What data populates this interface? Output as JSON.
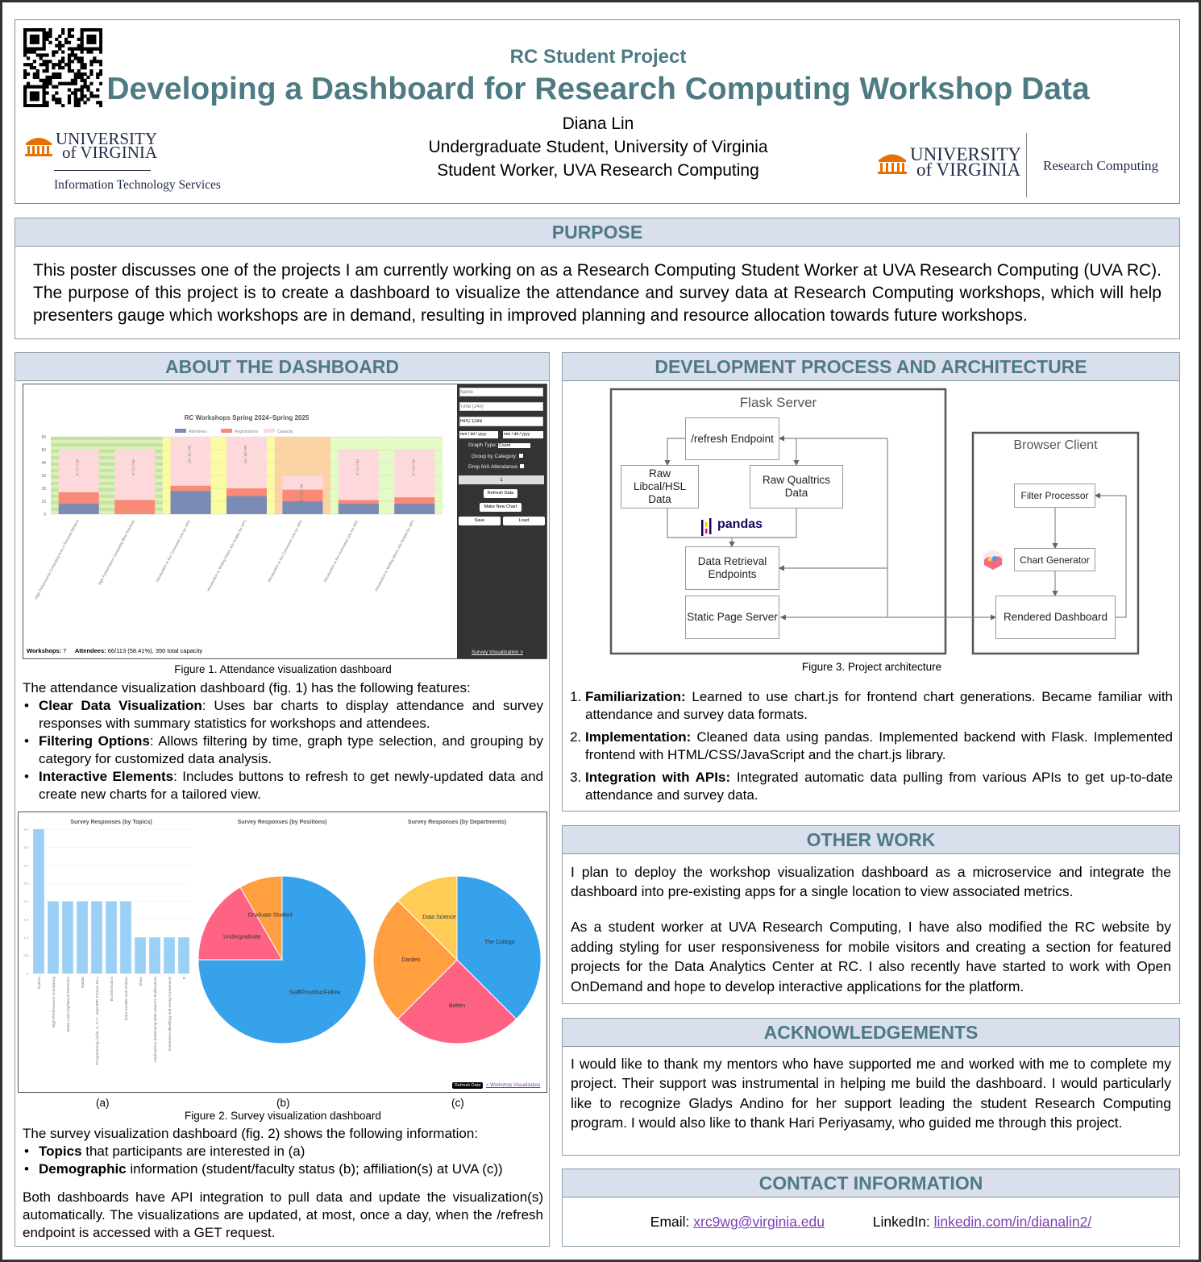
{
  "header": {
    "kicker": "RC Student Project",
    "title": "Developing a Dashboard for Research Computing Workshop Data",
    "author": "Diana Lin",
    "affiliation_1": "Undergraduate Student, University of Virginia",
    "affiliation_2": "Student Worker, UVA Research Computing",
    "logo_left": {
      "line1": "UNIVERSITY",
      "line2": "of VIRGINIA",
      "sub": "Information Technology Services"
    },
    "logo_right": {
      "line1": "UNIVERSITY",
      "line2": "of VIRGINIA",
      "sub": "Research Computing"
    },
    "qr_icon": "qr-code"
  },
  "colors": {
    "heading": "#4e7b83",
    "section_bg": "#d9dfec",
    "uva_orange": "#e57200",
    "uva_navy": "#232d4b",
    "link": "#7b3fb5"
  },
  "purpose": {
    "heading": "PURPOSE",
    "text": "This poster discusses one of the projects I am currently working on as a Research Computing Student Worker at UVA Research Computing (UVA RC). The purpose of this project is to create a dashboard to visualize the attendance and survey data at Research Computing workshops, which will help presenters gauge which workshops are in demand, resulting in improved planning and resource allocation towards future workshops."
  },
  "about": {
    "heading": "ABOUT THE DASHBOARD",
    "fig1_caption": "Figure 1. Attendance visualization dashboard",
    "intro": "The attendance visualization dashboard (fig. 1) has the following features:",
    "features": [
      {
        "bold": "Clear Data Visualization",
        "text": ": Uses bar charts to display attendance and survey responses with summary statistics for workshops and attendees."
      },
      {
        "bold": "Filtering Options",
        "text": ": Allows filtering by time, graph type selection, and grouping by category for customized data analysis."
      },
      {
        "bold": "Interactive Elements",
        "text": ": Includes buttons to refresh to get newly-updated data and create new charts for a tailored view."
      }
    ],
    "fig2_labels": [
      "(a)",
      "(b)",
      "(c)"
    ],
    "fig2_caption": "Figure 2. Survey visualization dashboard",
    "survey_intro": "The survey visualization dashboard (fig. 2) shows the following information:",
    "survey_items": [
      {
        "bold": "Topics",
        "text": " that participants are interested in (a)"
      },
      {
        "bold": "Demographic",
        "text": " information (student/faculty status (b); affiliation(s) at UVA (c))"
      }
    ],
    "closing": "Both dashboards have API integration to pull data and update the visualization(s) automatically. The visualizations are updated, at most, once a day, when the /refresh endpoint is accessed with a GET request."
  },
  "fig1_sidebar": {
    "name_placeholder": "Name",
    "time_placeholder": "Time (24h)",
    "category_value": "HPC Core",
    "date_from": "mm / dd / yyyy",
    "date_to": "mm / dd / yyyy",
    "graph_type_label": "Graph Type:",
    "graph_type_value": "Count",
    "group_label": "Group by Category:",
    "drop_na_label": "Drop N/A Attendance:",
    "page_value": "1",
    "refresh_button": "Refresh Data",
    "new_chart_button": "Make New Chart",
    "save_button": "Save",
    "load_button": "Load",
    "survey_link": "Survey Visualization >"
  },
  "fig1_footer": {
    "workshops_label": "Workshops:",
    "workshops_value": "7",
    "attendees_label": "Attendees:",
    "attendees_value": "66/113 (58.41%), 350 total capacity"
  },
  "fig2_footer": {
    "refresh_button": "Refresh Data",
    "workshop_link": "< Workshop Visualization"
  },
  "chart_data": [
    {
      "type": "bar",
      "title": "RC Workshops Spring 2024–Spring 2025",
      "legend": [
        "Attendees",
        "Registrations",
        "Capacity"
      ],
      "legend_placement": "top",
      "series_colors": [
        "#7a8bb5",
        "#fa8a78",
        "#fdd9dc"
      ],
      "categories": [
        "High Performance Computing from a Terminal Window",
        "High Performance Computing Best Practices",
        "Introduction to the Command Line for HPC",
        "Introduction to Writing Slurm Job Scripts for HPC",
        "Introduction to the Command Line for HPC",
        "Introduction to the Command Line for HPC",
        "Introduction to Writing Slurm Job Scripts for HPC"
      ],
      "series": [
        {
          "name": "Attendees",
          "values": [
            8,
            0,
            18,
            14,
            10,
            8,
            8
          ]
        },
        {
          "name": "Registrations",
          "values": [
            17,
            11,
            22,
            20,
            19,
            11,
            13
          ]
        },
        {
          "name": "Capacity",
          "values": [
            50,
            50,
            60,
            60,
            30,
            50,
            50
          ]
        }
      ],
      "data_labels": [
        "8 / 17 / 50",
        "0 / 11 / 50",
        "18 / 22 / 60",
        "14 / 20 / 60",
        "10 / 19 / 30",
        "8 / 11 / 50",
        "8 / 13 / 50"
      ],
      "band_colors": [
        "#d9f2b8",
        "#d9f2b8",
        "#fbfba0",
        "#fbfba0",
        "#fcd4a4",
        "#e3fbc4",
        "#e3fbc4"
      ],
      "ylim": [
        0,
        60
      ],
      "yticks": [
        0,
        10,
        20,
        30,
        40,
        50,
        60
      ],
      "grid": true
    },
    {
      "type": "bar",
      "title": "Survey Responses (by Topics)",
      "color": "#9ad0f5",
      "categories": [
        "Python",
        "High Performance Computing",
        "Deep Learning/Neural Networks",
        "Matlab",
        "Programming (Julia, C, C++, OpenMP, Fortran etc.)",
        "Bioinformatics",
        "Data transfer with Globus",
        "Shiny",
        "Applications (Deploying Web Apps for Publication)",
        "Containers (Building and Using Containers)",
        "R"
      ],
      "values": [
        4,
        2,
        2,
        2,
        2,
        2,
        2,
        1,
        1,
        1,
        1
      ],
      "ylim": [
        0,
        4
      ],
      "yticks": [
        "0",
        "0.5",
        "1.0",
        "1.5",
        "2.0",
        "2.5",
        "3.0",
        "3.5",
        "4.0"
      ],
      "grid": true
    },
    {
      "type": "pie",
      "title": "Survey Responses (by Positions)",
      "labels": [
        "Staff/Postdoc/Fellow",
        "Undergraduate",
        "Graduate Student"
      ],
      "values": [
        9,
        2,
        1
      ],
      "colors": [
        "#36a2eb",
        "#ff6384",
        "#ff9f40"
      ]
    },
    {
      "type": "pie",
      "title": "Survey Responses (by Departments)",
      "labels": [
        "The College",
        "Batten",
        "Darden",
        "Data Science"
      ],
      "values": [
        3,
        2,
        2,
        1
      ],
      "colors": [
        "#36a2eb",
        "#ff6384",
        "#ff9f40",
        "#ffcd56"
      ]
    }
  ],
  "development": {
    "heading": "DEVELOPMENT PROCESS AND ARCHITECTURE",
    "diagram": {
      "flask": "Flask Server",
      "browser": "Browser Client",
      "refresh": "/refresh Endpoint",
      "libcal": "Raw Libcal/HSL Data",
      "qualtrics": "Raw Qualtrics Data",
      "pandas": "pandas",
      "retrieval": "Data Retrieval Endpoints",
      "static": "Static Page Server",
      "filter": "Filter Processor",
      "chartgen": "Chart Generator",
      "rendered": "Rendered Dashboard",
      "chartjs_icon": "chartjs-logo"
    },
    "fig3_caption": "Figure 3. Project architecture",
    "steps": [
      {
        "bold": "Familiarization:",
        "text": " Learned to use chart.js for frontend chart generations. Became familiar with attendance and survey data formats."
      },
      {
        "bold": "Implementation:",
        "text": "  Cleaned data using pandas. Implemented backend with Flask. Implemented frontend with HTML/CSS/JavaScript and the chart.js library."
      },
      {
        "bold": "Integration with APIs:",
        "text": " Integrated automatic data pulling from various APIs to get up-to-date attendance and survey data."
      }
    ]
  },
  "other": {
    "heading": "OTHER WORK",
    "p1": "I plan to deploy the workshop visualization dashboard as a microservice and integrate the dashboard into pre-existing apps for a single location to view associated metrics.",
    "p2": "As a student worker at UVA Research Computing, I have also modified the RC website by adding styling for user responsiveness for mobile visitors and creating a section for featured projects for the Data Analytics Center at RC. I also recently have started to work with Open OnDemand and hope to develop interactive applications for the platform."
  },
  "ack": {
    "heading": "ACKNOWLEDGEMENTS",
    "text": "I would like to thank my mentors who have supported me and worked with me to complete my project. Their support was instrumental in helping me build the dashboard. I would particularly like to recognize Gladys Andino for her support leading the student Research Computing program. I would also like to thank Hari Periyasamy, who guided me through this project."
  },
  "contact": {
    "heading": "CONTACT INFORMATION",
    "email_label": "Email:",
    "email": "xrc9wg@virginia.edu",
    "linkedin_label": "LinkedIn:",
    "linkedin": "linkedin.com/in/dianalin2/"
  }
}
